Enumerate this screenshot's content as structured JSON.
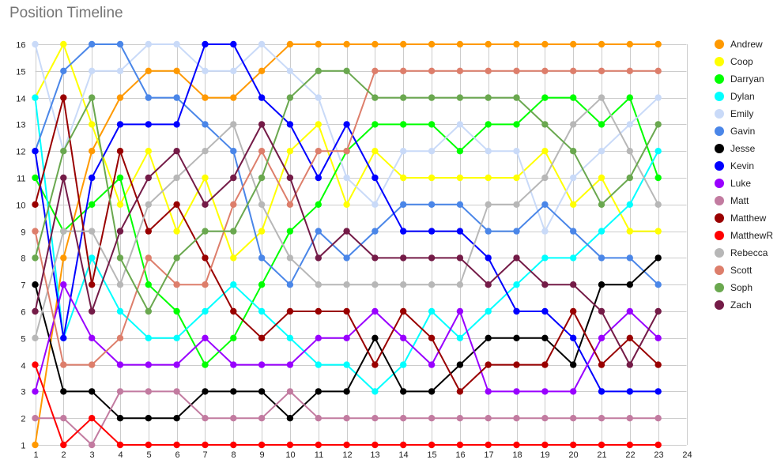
{
  "chart_data": {
    "type": "line",
    "title": "Position Timeline",
    "xlabel": "",
    "ylabel": "",
    "x_ticks": [
      1,
      2,
      3,
      4,
      5,
      6,
      7,
      8,
      9,
      10,
      11,
      12,
      13,
      14,
      15,
      16,
      17,
      18,
      19,
      20,
      21,
      22,
      23,
      24
    ],
    "y_ticks": [
      1,
      2,
      3,
      4,
      5,
      6,
      7,
      8,
      9,
      10,
      11,
      12,
      13,
      14,
      15,
      16
    ],
    "xlim": [
      1,
      24
    ],
    "ylim": [
      1,
      16
    ],
    "grid": true,
    "legend_position": "right",
    "x": [
      1,
      2,
      3,
      4,
      5,
      6,
      7,
      8,
      9,
      10,
      11,
      12,
      13,
      14,
      15,
      16,
      17,
      18,
      19,
      20,
      21,
      22,
      23
    ],
    "series": [
      {
        "name": "Andrew",
        "color": "#ff9900",
        "values": [
          1,
          8,
          12,
          14,
          15,
          15,
          14,
          14,
          15,
          16,
          16,
          16,
          16,
          16,
          16,
          16,
          16,
          16,
          16,
          16,
          16,
          16,
          16
        ]
      },
      {
        "name": "Coop",
        "color": "#ffff00",
        "values": [
          14,
          16,
          13,
          10,
          12,
          9,
          11,
          8,
          9,
          12,
          13,
          10,
          12,
          11,
          11,
          11,
          11,
          11,
          12,
          10,
          11,
          9,
          9
        ]
      },
      {
        "name": "Darryan",
        "color": "#00ff00",
        "values": [
          11,
          9,
          10,
          11,
          7,
          6,
          4,
          5,
          7,
          9,
          10,
          12,
          13,
          13,
          13,
          12,
          13,
          13,
          14,
          14,
          13,
          14,
          11
        ]
      },
      {
        "name": "Dylan",
        "color": "#00ffff",
        "values": [
          14,
          5,
          8,
          6,
          5,
          5,
          6,
          7,
          6,
          5,
          4,
          4,
          3,
          4,
          6,
          5,
          6,
          7,
          8,
          8,
          9,
          10,
          12
        ]
      },
      {
        "name": "Emily",
        "color": "#c9daf8",
        "values": [
          16,
          12,
          15,
          15,
          16,
          16,
          15,
          15,
          16,
          15,
          14,
          11,
          10,
          12,
          12,
          13,
          12,
          12,
          9,
          11,
          12,
          13,
          14
        ]
      },
      {
        "name": "Gavin",
        "color": "#4a86e8",
        "values": [
          12,
          15,
          16,
          16,
          14,
          14,
          13,
          12,
          8,
          7,
          9,
          8,
          9,
          10,
          10,
          10,
          9,
          9,
          10,
          9,
          8,
          8,
          7
        ]
      },
      {
        "name": "Jesse",
        "color": "#000000",
        "values": [
          7,
          3,
          3,
          2,
          2,
          2,
          3,
          3,
          3,
          2,
          3,
          3,
          5,
          3,
          3,
          4,
          5,
          5,
          5,
          4,
          7,
          7,
          8
        ]
      },
      {
        "name": "Kevin",
        "color": "#0000ff",
        "values": [
          12,
          5,
          11,
          13,
          13,
          13,
          16,
          16,
          14,
          13,
          11,
          13,
          11,
          9,
          9,
          9,
          8,
          6,
          6,
          5,
          3,
          3,
          3
        ]
      },
      {
        "name": "Luke",
        "color": "#9900ff",
        "values": [
          3,
          7,
          5,
          4,
          4,
          4,
          5,
          4,
          4,
          4,
          5,
          5,
          6,
          5,
          4,
          6,
          3,
          3,
          3,
          3,
          5,
          6,
          5
        ]
      },
      {
        "name": "Matt",
        "color": "#c27ba0",
        "values": [
          2,
          2,
          1,
          3,
          3,
          3,
          2,
          2,
          2,
          3,
          2,
          2,
          2,
          2,
          2,
          2,
          2,
          2,
          2,
          2,
          2,
          2,
          2
        ]
      },
      {
        "name": "Matthew",
        "color": "#990000",
        "values": [
          10,
          14,
          7,
          12,
          9,
          10,
          8,
          6,
          5,
          6,
          6,
          6,
          4,
          6,
          5,
          3,
          4,
          4,
          4,
          6,
          4,
          5,
          4
        ]
      },
      {
        "name": "MatthewR",
        "color": "#ff0000",
        "values": [
          4,
          1,
          2,
          1,
          1,
          1,
          1,
          1,
          1,
          1,
          1,
          1,
          1,
          1,
          1,
          1,
          1,
          1,
          1,
          1,
          1,
          1,
          1
        ]
      },
      {
        "name": "Rebecca",
        "color": "#b7b7b7",
        "values": [
          5,
          9,
          9,
          7,
          10,
          11,
          12,
          13,
          10,
          8,
          7,
          7,
          7,
          7,
          7,
          7,
          10,
          10,
          11,
          13,
          14,
          12,
          10
        ]
      },
      {
        "name": "Scott",
        "color": "#dd7e6b",
        "values": [
          9,
          4,
          4,
          5,
          8,
          7,
          7,
          10,
          12,
          10,
          12,
          12,
          15,
          15,
          15,
          15,
          15,
          15,
          15,
          15,
          15,
          15,
          15
        ]
      },
      {
        "name": "Soph",
        "color": "#6aa84f",
        "values": [
          8,
          12,
          14,
          8,
          6,
          8,
          9,
          9,
          11,
          14,
          15,
          15,
          14,
          14,
          14,
          14,
          14,
          14,
          13,
          12,
          10,
          11,
          13
        ]
      },
      {
        "name": "Zach",
        "color": "#741b47",
        "values": [
          6,
          11,
          6,
          9,
          11,
          12,
          10,
          11,
          13,
          11,
          8,
          9,
          8,
          8,
          8,
          8,
          7,
          8,
          7,
          7,
          6,
          4,
          6
        ]
      }
    ]
  }
}
